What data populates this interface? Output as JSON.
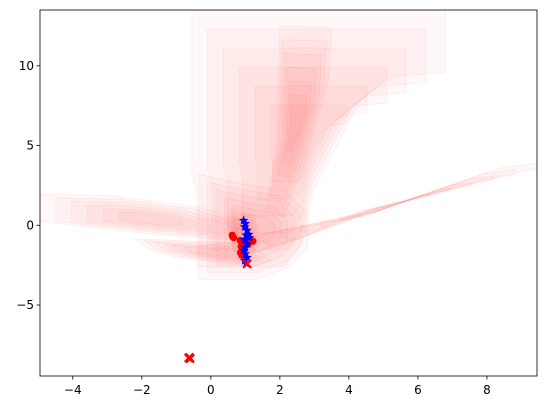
{
  "chart_data": {
    "type": "scatter",
    "title": "",
    "xlabel": "",
    "ylabel": "",
    "xlim": [
      -4.95,
      9.45
    ],
    "ylim": [
      -9.45,
      13.5
    ],
    "grid": false,
    "x_ticks": [
      -4,
      -2,
      0,
      2,
      4,
      6,
      8
    ],
    "y_ticks": [
      -5,
      0,
      5,
      10
    ],
    "x_tick_labels": [
      "−4",
      "−2",
      "0",
      "2",
      "4",
      "6",
      "8"
    ],
    "y_tick_labels": [
      "−5",
      "0",
      "5",
      "10"
    ],
    "background_density": {
      "color": "#ff0000",
      "regions": [
        {
          "label": "upper-column",
          "polygon": [
            [
              -0.55,
              13.5
            ],
            [
              6.8,
              13.5
            ],
            [
              6.8,
              9.6
            ],
            [
              5.2,
              9.3
            ],
            [
              4.3,
              7.8
            ],
            [
              3.7,
              5.2
            ],
            [
              2.95,
              2.1
            ],
            [
              2.65,
              -1.1
            ],
            [
              2.1,
              -2.6
            ],
            [
              -0.4,
              -2.6
            ],
            [
              -0.4,
              2.0
            ],
            [
              -0.55,
              3.2
            ]
          ]
        },
        {
          "label": "central-mass",
          "polygon": [
            [
              -0.35,
              3.2
            ],
            [
              -0.35,
              -3.4
            ],
            [
              1.3,
              -3.4
            ],
            [
              2.3,
              -2.6
            ],
            [
              2.8,
              -1.4
            ],
            [
              2.8,
              0.8
            ],
            [
              2.1,
              2.2
            ],
            [
              0.9,
              2.6
            ]
          ]
        },
        {
          "label": "left-band",
          "polygon": [
            [
              -4.95,
              1.95
            ],
            [
              -2.8,
              1.85
            ],
            [
              -0.35,
              1.15
            ],
            [
              1.05,
              0.2
            ],
            [
              1.2,
              -0.8
            ],
            [
              0.5,
              -0.9
            ],
            [
              -1.5,
              -0.6
            ],
            [
              -3.2,
              -0.2
            ],
            [
              -4.95,
              0.25
            ]
          ]
        },
        {
          "label": "lower-left-band",
          "polygon": [
            [
              -2.2,
              -0.85
            ],
            [
              -0.4,
              -1.0
            ],
            [
              1.0,
              -1.1
            ],
            [
              1.75,
              -2.2
            ],
            [
              1.2,
              -2.6
            ],
            [
              -1.0,
              -2.0
            ],
            [
              -1.8,
              -1.5
            ]
          ]
        },
        {
          "label": "right-ray",
          "polygon": [
            [
              0.9,
              -0.8
            ],
            [
              4.5,
              0.6
            ],
            [
              8.4,
              3.6
            ],
            [
              9.45,
              3.9
            ],
            [
              9.45,
              3.55
            ],
            [
              8.2,
              3.0
            ],
            [
              4.2,
              0.8
            ],
            [
              2.4,
              -1.0
            ],
            [
              1.25,
              -1.7
            ],
            [
              0.9,
              -1.35
            ]
          ]
        },
        {
          "label": "hot-core",
          "polygon": [
            [
              0.55,
              1.05
            ],
            [
              1.25,
              0.6
            ],
            [
              1.45,
              -0.8
            ],
            [
              1.2,
              -2.1
            ],
            [
              0.8,
              -2.3
            ],
            [
              0.55,
              -1.0
            ],
            [
              0.45,
              0.2
            ]
          ]
        },
        {
          "label": "upper-ridge",
          "polygon": [
            [
              2.0,
              12.5
            ],
            [
              3.5,
              12.4
            ],
            [
              3.4,
              9.0
            ],
            [
              2.7,
              3.8
            ],
            [
              2.1,
              0.5
            ],
            [
              1.6,
              1.0
            ],
            [
              1.9,
              5.0
            ]
          ]
        }
      ]
    },
    "series": [
      {
        "marker": "o",
        "color": "#ff0000",
        "points": [
          [
            0.62,
            -0.62
          ],
          [
            0.66,
            -0.78
          ],
          [
            0.63,
            -0.7
          ],
          [
            0.85,
            -0.95
          ],
          [
            0.9,
            -1.12
          ],
          [
            0.88,
            -1.32
          ],
          [
            0.92,
            -1.52
          ],
          [
            0.86,
            -1.72
          ],
          [
            0.9,
            -1.88
          ],
          [
            0.95,
            -1.6
          ],
          [
            1.02,
            -1.25
          ],
          [
            1.08,
            -1.18
          ],
          [
            1.22,
            -1.0
          ],
          [
            1.15,
            -1.0
          ]
        ]
      },
      {
        "marker": "*",
        "color": "#0000ff",
        "points": [
          [
            0.95,
            0.3
          ],
          [
            1.0,
            0.1
          ],
          [
            0.98,
            -0.1
          ],
          [
            1.05,
            -0.32
          ],
          [
            1.1,
            -0.58
          ],
          [
            1.12,
            -0.78
          ],
          [
            1.02,
            -0.62
          ],
          [
            0.98,
            -0.9
          ],
          [
            1.06,
            -1.18
          ],
          [
            1.0,
            -1.4
          ],
          [
            0.95,
            -1.58
          ],
          [
            1.0,
            -1.8
          ],
          [
            1.05,
            -2.02
          ],
          [
            0.98,
            -2.22
          ],
          [
            1.02,
            -2.38
          ]
        ]
      },
      {
        "marker": "x",
        "color": "#ff0000",
        "points": [
          [
            -0.62,
            -8.28
          ],
          [
            -0.6,
            -8.36
          ],
          [
            -0.64,
            -8.32
          ],
          [
            1.05,
            -2.42
          ]
        ]
      }
    ]
  }
}
